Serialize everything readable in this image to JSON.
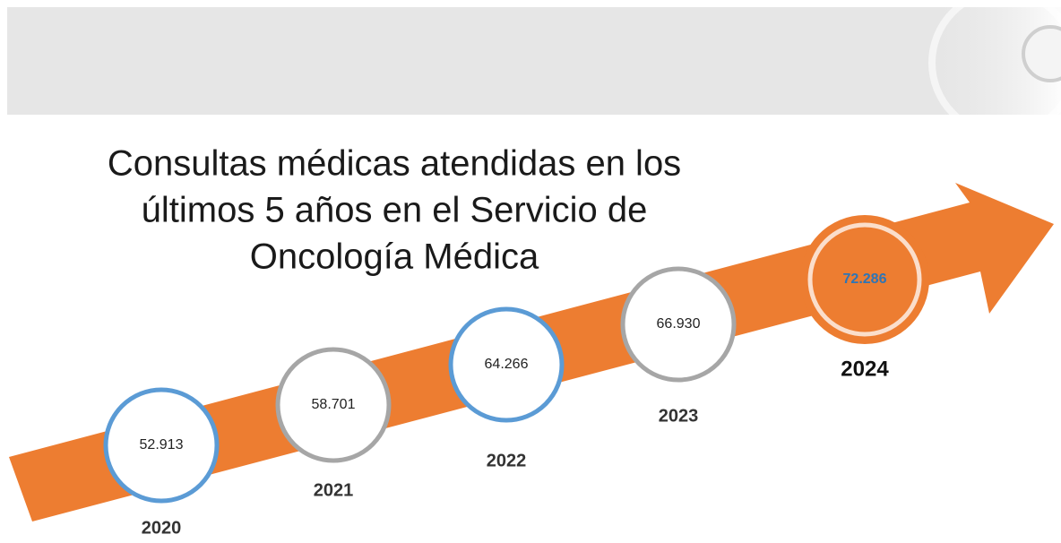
{
  "title": [
    "Consultas médicas  atendidas en los",
    "últimos 5 años en el Servicio de",
    "Oncología Médica"
  ],
  "items": [
    {
      "year": "2020",
      "value": "52.913",
      "color": "#5b9bd5"
    },
    {
      "year": "2021",
      "value": "58.701",
      "color": "#a6a6a6"
    },
    {
      "year": "2022",
      "value": "64.266",
      "color": "#5b9bd5"
    },
    {
      "year": "2023",
      "value": "66.930",
      "color": "#a6a6a6"
    },
    {
      "year": "2024",
      "value": "72.286",
      "color": "#ed7d31",
      "highlight": true
    }
  ]
}
